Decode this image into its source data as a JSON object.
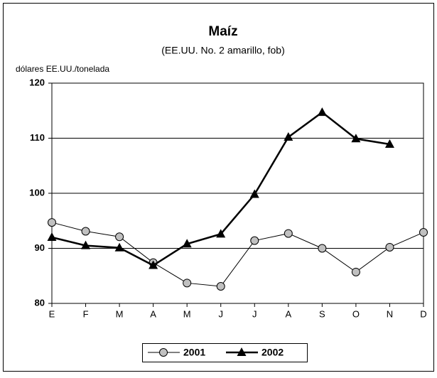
{
  "chart_data": {
    "type": "line",
    "title": "Maíz",
    "subtitle": "(EE.UU. No. 2 amarillo, fob)",
    "y_label": "dólares EE.UU./tonelada",
    "categories": [
      "E",
      "F",
      "M",
      "A",
      "M",
      "J",
      "J",
      "A",
      "S",
      "O",
      "N",
      "D"
    ],
    "series": [
      {
        "name": "2001",
        "color": "#000000",
        "marker": "circle",
        "values": [
          94.7,
          93.1,
          92.1,
          87.4,
          83.7,
          83.1,
          91.4,
          92.7,
          90.0,
          85.7,
          90.2,
          92.9
        ]
      },
      {
        "name": "2002",
        "color": "#000000",
        "marker": "triangle",
        "values": [
          92.0,
          90.5,
          90.1,
          86.9,
          90.8,
          92.6,
          99.8,
          110.2,
          114.7,
          109.9,
          108.9,
          null
        ]
      }
    ],
    "ylim": [
      80,
      120
    ],
    "yticks": [
      80,
      90,
      100,
      110,
      120
    ],
    "grid": true,
    "legend": "bottom"
  }
}
